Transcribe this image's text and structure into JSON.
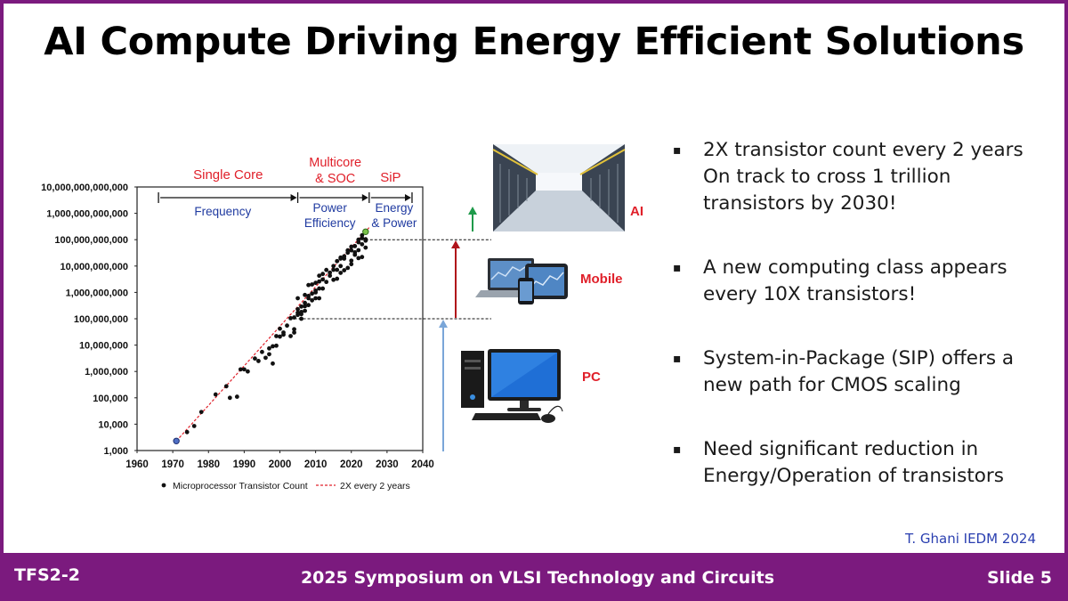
{
  "slide": {
    "title": "AI Compute Driving Energy Efficient Solutions",
    "citation": "T. Ghani IEDM 2024"
  },
  "footer": {
    "left": "TFS2-2",
    "center": "2025 Symposium on VLSI Technology and Circuits",
    "right": "Slide 5"
  },
  "bullets": [
    {
      "lines": [
        "2X transistor count every 2 years",
        "On track to cross 1 trillion",
        "transistors by 2030!"
      ]
    },
    {
      "lines": [
        "A new computing class appears",
        "every 10X transistors!"
      ]
    },
    {
      "lines": [
        "System-in-Package (SIP) offers a",
        "new path for CMOS scaling"
      ]
    },
    {
      "lines": [
        "Need significant reduction in",
        "Energy/Operation of transistors"
      ]
    }
  ],
  "bullet_marker": "▪",
  "device_labels": {
    "ai": "AI",
    "mobile": "Mobile",
    "pc": "PC"
  },
  "device_icons": {
    "ai": "datacenter-image",
    "mobile": "laptop-tablet-phone-image",
    "pc": "desktop-computer-image"
  },
  "colors": {
    "frame": "#7b1a7e",
    "era_label": "#e0202a",
    "phase_label": "#1f3aa0",
    "trend": "#e0202a",
    "arrow_pc": "#7aa6d8",
    "arrow_mobile": "#b0121a",
    "arrow_ai": "#1f9a4a",
    "device_label": "#e0202a",
    "citation": "#2a3fb0"
  },
  "chart_data": {
    "type": "scatter",
    "ylog": true,
    "xlim": [
      1960,
      2040
    ],
    "ylim": [
      1000,
      10000000000000
    ],
    "x_ticks": [
      1960,
      1970,
      1980,
      1990,
      2000,
      2010,
      2020,
      2030,
      2040
    ],
    "y_ticks": [
      1000,
      10000,
      100000,
      1000000,
      10000000,
      100000000,
      1000000000,
      10000000000,
      100000000000,
      1000000000000,
      10000000000000
    ],
    "y_tick_labels": [
      "1,000",
      "10,000",
      "100,000",
      "1,000,000",
      "10,000,000",
      "100,000,000",
      "1,000,000,000",
      "10,000,000,000",
      "100,000,000,000",
      "1,000,000,000,000",
      "10,000,000,000,000"
    ],
    "legend": [
      "Microprocessor Transistor Count",
      "2X every 2 years"
    ],
    "legend_position": "bottom",
    "eras": [
      {
        "label": "Single Core",
        "phase": "Frequency",
        "start": 1966,
        "end": 2005
      },
      {
        "label": "Multicore & SOC",
        "phase": "Power Efficiency",
        "start": 2005,
        "end": 2025
      },
      {
        "label": "SiP",
        "phase": "Energy & Power",
        "start": 2025,
        "end": 2037
      }
    ],
    "trend": {
      "name": "2X every 2 years",
      "x": [
        1971,
        2025
      ],
      "y": [
        2300,
        290000000000
      ]
    },
    "highlight_points": [
      {
        "x": 1971,
        "y": 2300
      },
      {
        "x": 2024,
        "y": 200000000000
      }
    ],
    "reference_levels": [
      100000000,
      100000000000
    ],
    "series": [
      {
        "name": "Microprocessor Transistor Count",
        "points": [
          [
            1974,
            5000
          ],
          [
            1976,
            8500
          ],
          [
            1978,
            29000
          ],
          [
            1982,
            134000
          ],
          [
            1985,
            275000
          ],
          [
            1986,
            100000
          ],
          [
            1988,
            110000
          ],
          [
            1989,
            1200000
          ],
          [
            1990,
            1200000
          ],
          [
            1991,
            1000000
          ],
          [
            1993,
            3100000
          ],
          [
            1994,
            2500000
          ],
          [
            1995,
            5500000
          ],
          [
            1996,
            3300000
          ],
          [
            1997,
            7500000
          ],
          [
            1997,
            4500000
          ],
          [
            1998,
            2000000
          ],
          [
            1998,
            9000000
          ],
          [
            1999,
            9500000
          ],
          [
            1999,
            22000000
          ],
          [
            2000,
            42000000
          ],
          [
            2000,
            21000000
          ],
          [
            2001,
            25000000
          ],
          [
            2001,
            30000000
          ],
          [
            2002,
            55000000
          ],
          [
            2003,
            105000000
          ],
          [
            2003,
            22000000
          ],
          [
            2004,
            112000000
          ],
          [
            2004,
            40000000
          ],
          [
            2004,
            30000000
          ],
          [
            2005,
            170000000
          ],
          [
            2005,
            140000000
          ],
          [
            2005,
            230000000
          ],
          [
            2005,
            600000000
          ],
          [
            2006,
            290000000
          ],
          [
            2006,
            180000000
          ],
          [
            2006,
            100000000
          ],
          [
            2006,
            150000000
          ],
          [
            2007,
            400000000
          ],
          [
            2007,
            800000000
          ],
          [
            2007,
            300000000
          ],
          [
            2007,
            200000000
          ],
          [
            2008,
            730000000
          ],
          [
            2008,
            1900000000
          ],
          [
            2008,
            600000000
          ],
          [
            2008,
            330000000
          ],
          [
            2009,
            900000000
          ],
          [
            2009,
            2000000000
          ],
          [
            2009,
            500000000
          ],
          [
            2010,
            1170000000
          ],
          [
            2010,
            2300000000
          ],
          [
            2010,
            1000000000
          ],
          [
            2010,
            600000000
          ],
          [
            2011,
            2600000000
          ],
          [
            2011,
            1400000000
          ],
          [
            2011,
            600000000
          ],
          [
            2011,
            4300000000
          ],
          [
            2012,
            3100000000
          ],
          [
            2012,
            1400000000
          ],
          [
            2012,
            5000000000
          ],
          [
            2013,
            7100000000
          ],
          [
            2013,
            2500000000
          ],
          [
            2014,
            4300000000
          ],
          [
            2014,
            5600000000
          ],
          [
            2015,
            7200000000
          ],
          [
            2015,
            10000000000
          ],
          [
            2015,
            3000000000
          ],
          [
            2016,
            7200000000
          ],
          [
            2016,
            15300000000
          ],
          [
            2016,
            3300000000
          ],
          [
            2017,
            19200000000
          ],
          [
            2017,
            10000000000
          ],
          [
            2017,
            5500000000
          ],
          [
            2017,
            21000000000
          ],
          [
            2018,
            19200000000
          ],
          [
            2018,
            6900000000
          ],
          [
            2018,
            23600000000
          ],
          [
            2019,
            39500000000
          ],
          [
            2019,
            8500000000
          ],
          [
            2019,
            32000000000
          ],
          [
            2020,
            54200000000
          ],
          [
            2020,
            16000000000
          ],
          [
            2020,
            39500000000
          ],
          [
            2020,
            11800000000
          ],
          [
            2021,
            57000000000
          ],
          [
            2021,
            33000000000
          ],
          [
            2021,
            26800000000
          ],
          [
            2022,
            80000000000
          ],
          [
            2022,
            100000000000
          ],
          [
            2022,
            20000000000
          ],
          [
            2022,
            40000000000
          ],
          [
            2023,
            114000000000
          ],
          [
            2023,
            67000000000
          ],
          [
            2023,
            22000000000
          ],
          [
            2023,
            146000000000
          ],
          [
            2024,
            92000000000
          ],
          [
            2024,
            50000000000
          ],
          [
            2024,
            104000000000
          ]
        ]
      }
    ]
  }
}
